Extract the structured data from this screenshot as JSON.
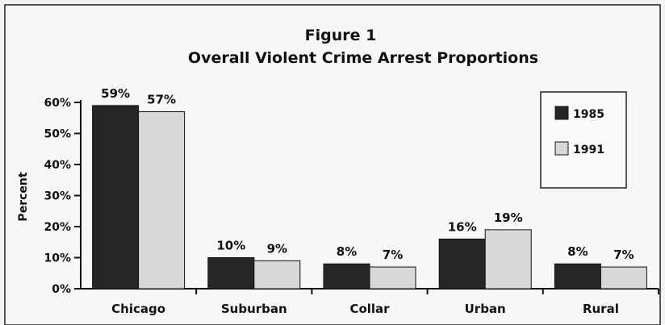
{
  "chart_data": {
    "type": "bar",
    "title": "Figure 1",
    "subtitle": "Overall Violent Crime Arrest Proportions",
    "ylabel": "Percent",
    "xlabel": "",
    "ylim": [
      0,
      60
    ],
    "yticks": [
      "0%",
      "10%",
      "20%",
      "30%",
      "40%",
      "50%",
      "60%"
    ],
    "categories": [
      "Chicago",
      "Suburban",
      "Collar",
      "Urban",
      "Rural"
    ],
    "series": [
      {
        "name": "1985",
        "color": "#262626",
        "values": [
          59,
          10,
          8,
          16,
          8
        ],
        "labels": [
          "59%",
          "10%",
          "8%",
          "16%",
          "8%"
        ]
      },
      {
        "name": "1991",
        "color": "#d8d8d6",
        "values": [
          57,
          9,
          7,
          19,
          7
        ],
        "labels": [
          "57%",
          "9%",
          "7%",
          "19%",
          "7%"
        ]
      }
    ],
    "legend_position": "top-right",
    "grid": false
  }
}
